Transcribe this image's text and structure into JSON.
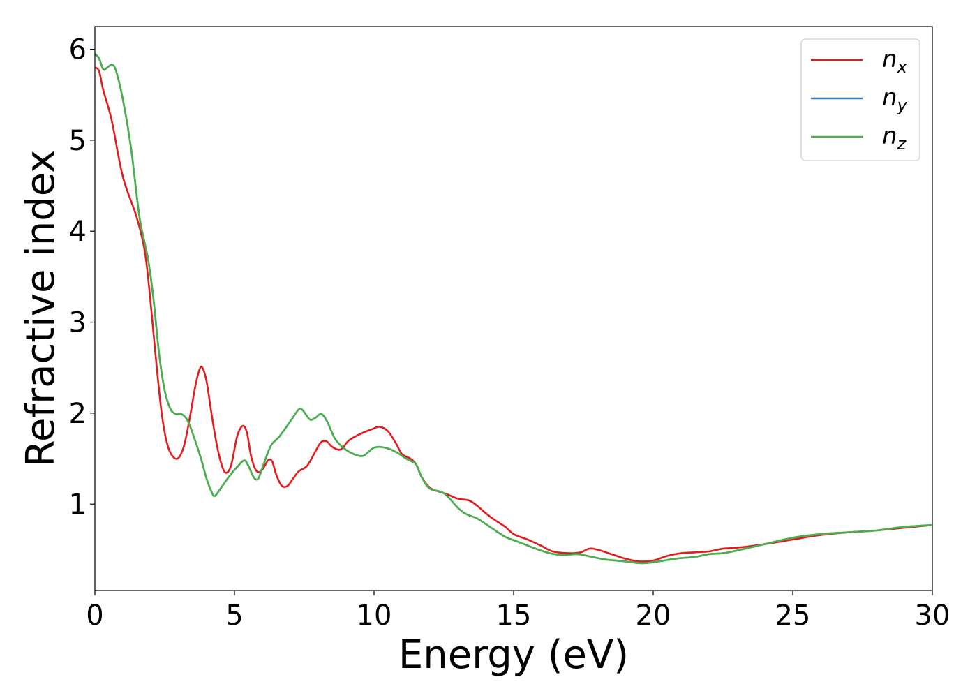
{
  "chart_data": {
    "type": "line",
    "title": "",
    "xlabel": "Energy (eV)",
    "ylabel": "Refractive index",
    "xlim": [
      0,
      30
    ],
    "ylim": [
      0.05,
      6.25
    ],
    "xticks": [
      0,
      5,
      10,
      15,
      20,
      25,
      30
    ],
    "yticks": [
      1,
      2,
      3,
      4,
      5,
      6
    ],
    "grid": false,
    "legend_position": "top-right",
    "series": [
      {
        "name": "n",
        "subscript": "x",
        "color": "#e41a1c",
        "points": [
          [
            0,
            5.8
          ],
          [
            0.15,
            5.76
          ],
          [
            0.3,
            5.55
          ],
          [
            0.6,
            5.22
          ],
          [
            1.0,
            4.6
          ],
          [
            1.5,
            4.15
          ],
          [
            1.8,
            3.75
          ],
          [
            2.0,
            3.2
          ],
          [
            2.2,
            2.55
          ],
          [
            2.4,
            1.98
          ],
          [
            2.6,
            1.65
          ],
          [
            2.8,
            1.52
          ],
          [
            3.0,
            1.51
          ],
          [
            3.2,
            1.65
          ],
          [
            3.4,
            1.95
          ],
          [
            3.6,
            2.3
          ],
          [
            3.75,
            2.48
          ],
          [
            3.85,
            2.5
          ],
          [
            4.0,
            2.35
          ],
          [
            4.2,
            1.95
          ],
          [
            4.4,
            1.6
          ],
          [
            4.6,
            1.38
          ],
          [
            4.75,
            1.35
          ],
          [
            4.9,
            1.45
          ],
          [
            5.1,
            1.75
          ],
          [
            5.3,
            1.86
          ],
          [
            5.45,
            1.78
          ],
          [
            5.6,
            1.52
          ],
          [
            5.8,
            1.36
          ],
          [
            6.0,
            1.38
          ],
          [
            6.2,
            1.48
          ],
          [
            6.35,
            1.47
          ],
          [
            6.5,
            1.32
          ],
          [
            6.7,
            1.2
          ],
          [
            6.9,
            1.2
          ],
          [
            7.1,
            1.28
          ],
          [
            7.3,
            1.36
          ],
          [
            7.6,
            1.42
          ],
          [
            7.9,
            1.58
          ],
          [
            8.1,
            1.68
          ],
          [
            8.3,
            1.69
          ],
          [
            8.5,
            1.63
          ],
          [
            8.8,
            1.6
          ],
          [
            9.1,
            1.7
          ],
          [
            9.5,
            1.77
          ],
          [
            9.9,
            1.82
          ],
          [
            10.2,
            1.85
          ],
          [
            10.5,
            1.8
          ],
          [
            10.8,
            1.66
          ],
          [
            11.0,
            1.55
          ],
          [
            11.3,
            1.5
          ],
          [
            11.5,
            1.44
          ],
          [
            11.7,
            1.3
          ],
          [
            12.0,
            1.18
          ],
          [
            12.3,
            1.14
          ],
          [
            12.6,
            1.11
          ],
          [
            13.0,
            1.06
          ],
          [
            13.4,
            1.04
          ],
          [
            13.7,
            0.98
          ],
          [
            14.0,
            0.9
          ],
          [
            14.3,
            0.83
          ],
          [
            14.7,
            0.75
          ],
          [
            15.0,
            0.67
          ],
          [
            15.5,
            0.61
          ],
          [
            16.0,
            0.54
          ],
          [
            16.4,
            0.48
          ],
          [
            17.0,
            0.46
          ],
          [
            17.4,
            0.47
          ],
          [
            17.7,
            0.51
          ],
          [
            18.0,
            0.5
          ],
          [
            18.5,
            0.45
          ],
          [
            19.0,
            0.4
          ],
          [
            19.5,
            0.37
          ],
          [
            20.0,
            0.38
          ],
          [
            20.5,
            0.43
          ],
          [
            21.0,
            0.46
          ],
          [
            21.5,
            0.47
          ],
          [
            22.0,
            0.48
          ],
          [
            22.5,
            0.51
          ],
          [
            23.0,
            0.52
          ],
          [
            24.0,
            0.56
          ],
          [
            25.0,
            0.61
          ],
          [
            26.0,
            0.66
          ],
          [
            27.0,
            0.69
          ],
          [
            28.0,
            0.71
          ],
          [
            29.0,
            0.74
          ],
          [
            30.0,
            0.77
          ]
        ]
      },
      {
        "name": "n",
        "subscript": "y",
        "color": "#377eb8",
        "points": [
          [
            0,
            5.95
          ],
          [
            0.15,
            5.9
          ],
          [
            0.3,
            5.78
          ],
          [
            0.45,
            5.8
          ],
          [
            0.6,
            5.83
          ],
          [
            0.75,
            5.77
          ],
          [
            1.0,
            5.45
          ],
          [
            1.3,
            4.9
          ],
          [
            1.6,
            4.15
          ],
          [
            1.9,
            3.7
          ],
          [
            2.1,
            3.25
          ],
          [
            2.3,
            2.65
          ],
          [
            2.5,
            2.25
          ],
          [
            2.7,
            2.05
          ],
          [
            2.9,
            1.99
          ],
          [
            3.1,
            1.99
          ],
          [
            3.3,
            1.93
          ],
          [
            3.5,
            1.78
          ],
          [
            3.8,
            1.5
          ],
          [
            4.0,
            1.28
          ],
          [
            4.2,
            1.12
          ],
          [
            4.3,
            1.09
          ],
          [
            4.5,
            1.17
          ],
          [
            4.8,
            1.3
          ],
          [
            5.1,
            1.41
          ],
          [
            5.35,
            1.48
          ],
          [
            5.5,
            1.42
          ],
          [
            5.7,
            1.29
          ],
          [
            5.85,
            1.28
          ],
          [
            6.0,
            1.4
          ],
          [
            6.3,
            1.64
          ],
          [
            6.6,
            1.74
          ],
          [
            7.0,
            1.91
          ],
          [
            7.3,
            2.04
          ],
          [
            7.45,
            2.03
          ],
          [
            7.7,
            1.93
          ],
          [
            7.9,
            1.95
          ],
          [
            8.1,
            1.99
          ],
          [
            8.3,
            1.92
          ],
          [
            8.6,
            1.72
          ],
          [
            8.9,
            1.62
          ],
          [
            9.2,
            1.56
          ],
          [
            9.6,
            1.53
          ],
          [
            10.0,
            1.62
          ],
          [
            10.4,
            1.62
          ],
          [
            10.8,
            1.57
          ],
          [
            11.2,
            1.49
          ],
          [
            11.5,
            1.44
          ],
          [
            11.7,
            1.3
          ],
          [
            12.0,
            1.17
          ],
          [
            12.5,
            1.12
          ],
          [
            13.0,
            0.96
          ],
          [
            13.3,
            0.89
          ],
          [
            13.7,
            0.84
          ],
          [
            14.2,
            0.74
          ],
          [
            14.7,
            0.64
          ],
          [
            15.2,
            0.58
          ],
          [
            15.8,
            0.51
          ],
          [
            16.3,
            0.46
          ],
          [
            16.8,
            0.44
          ],
          [
            17.3,
            0.45
          ],
          [
            17.8,
            0.42
          ],
          [
            18.3,
            0.39
          ],
          [
            19.0,
            0.37
          ],
          [
            19.6,
            0.35
          ],
          [
            20.2,
            0.37
          ],
          [
            20.8,
            0.4
          ],
          [
            21.5,
            0.42
          ],
          [
            22.0,
            0.45
          ],
          [
            22.5,
            0.46
          ],
          [
            23.0,
            0.49
          ],
          [
            24.0,
            0.56
          ],
          [
            25.0,
            0.63
          ],
          [
            26.0,
            0.67
          ],
          [
            27.0,
            0.69
          ],
          [
            28.0,
            0.71
          ],
          [
            29.0,
            0.75
          ],
          [
            30.0,
            0.77
          ]
        ]
      },
      {
        "name": "n",
        "subscript": "z",
        "color": "#4daf4a",
        "points": [
          [
            0,
            5.95
          ],
          [
            0.15,
            5.9
          ],
          [
            0.3,
            5.78
          ],
          [
            0.45,
            5.8
          ],
          [
            0.6,
            5.83
          ],
          [
            0.75,
            5.77
          ],
          [
            1.0,
            5.45
          ],
          [
            1.3,
            4.9
          ],
          [
            1.6,
            4.15
          ],
          [
            1.9,
            3.7
          ],
          [
            2.1,
            3.25
          ],
          [
            2.3,
            2.65
          ],
          [
            2.5,
            2.25
          ],
          [
            2.7,
            2.05
          ],
          [
            2.9,
            1.99
          ],
          [
            3.1,
            1.99
          ],
          [
            3.3,
            1.93
          ],
          [
            3.5,
            1.78
          ],
          [
            3.8,
            1.5
          ],
          [
            4.0,
            1.28
          ],
          [
            4.2,
            1.12
          ],
          [
            4.3,
            1.09
          ],
          [
            4.5,
            1.17
          ],
          [
            4.8,
            1.3
          ],
          [
            5.1,
            1.41
          ],
          [
            5.35,
            1.48
          ],
          [
            5.5,
            1.42
          ],
          [
            5.7,
            1.29
          ],
          [
            5.85,
            1.28
          ],
          [
            6.0,
            1.4
          ],
          [
            6.3,
            1.64
          ],
          [
            6.6,
            1.74
          ],
          [
            7.0,
            1.91
          ],
          [
            7.3,
            2.04
          ],
          [
            7.45,
            2.03
          ],
          [
            7.7,
            1.93
          ],
          [
            7.9,
            1.95
          ],
          [
            8.1,
            1.99
          ],
          [
            8.3,
            1.92
          ],
          [
            8.6,
            1.72
          ],
          [
            8.9,
            1.62
          ],
          [
            9.2,
            1.56
          ],
          [
            9.6,
            1.53
          ],
          [
            10.0,
            1.62
          ],
          [
            10.4,
            1.62
          ],
          [
            10.8,
            1.57
          ],
          [
            11.2,
            1.49
          ],
          [
            11.5,
            1.44
          ],
          [
            11.7,
            1.3
          ],
          [
            12.0,
            1.17
          ],
          [
            12.5,
            1.12
          ],
          [
            13.0,
            0.96
          ],
          [
            13.3,
            0.89
          ],
          [
            13.7,
            0.84
          ],
          [
            14.2,
            0.74
          ],
          [
            14.7,
            0.64
          ],
          [
            15.2,
            0.58
          ],
          [
            15.8,
            0.51
          ],
          [
            16.3,
            0.46
          ],
          [
            16.8,
            0.44
          ],
          [
            17.3,
            0.45
          ],
          [
            17.8,
            0.42
          ],
          [
            18.3,
            0.39
          ],
          [
            19.0,
            0.37
          ],
          [
            19.6,
            0.35
          ],
          [
            20.2,
            0.37
          ],
          [
            20.8,
            0.4
          ],
          [
            21.5,
            0.42
          ],
          [
            22.0,
            0.45
          ],
          [
            22.5,
            0.46
          ],
          [
            23.0,
            0.49
          ],
          [
            24.0,
            0.56
          ],
          [
            25.0,
            0.63
          ],
          [
            26.0,
            0.67
          ],
          [
            27.0,
            0.69
          ],
          [
            28.0,
            0.71
          ],
          [
            29.0,
            0.75
          ],
          [
            30.0,
            0.77
          ]
        ]
      }
    ]
  }
}
